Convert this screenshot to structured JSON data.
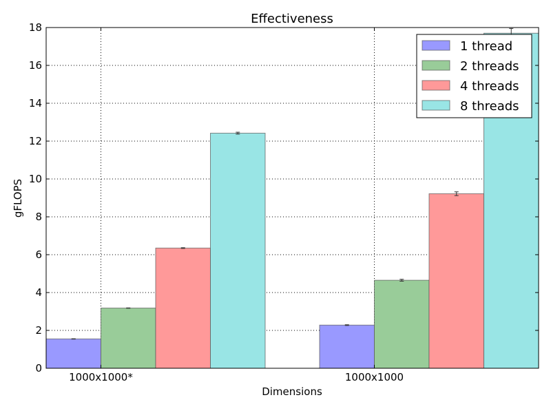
{
  "chart_data": {
    "type": "bar",
    "title": "Effectiveness",
    "xlabel": "Dimensions",
    "ylabel": "gFLOPS",
    "ylim": [
      0,
      18
    ],
    "yticks": [
      0,
      2,
      4,
      6,
      8,
      10,
      12,
      14,
      16,
      18
    ],
    "grid": true,
    "legend_position": "top-right",
    "categories": [
      "1000x1000*",
      "1000x1000"
    ],
    "series": [
      {
        "name": "1 thread",
        "color": "#9999ff",
        "values": [
          1.55,
          2.28
        ],
        "errors": [
          0.01,
          0.02
        ]
      },
      {
        "name": "2 threads",
        "color": "#99cc99",
        "values": [
          3.18,
          4.65
        ],
        "errors": [
          0.01,
          0.05
        ]
      },
      {
        "name": "4 threads",
        "color": "#ff9999",
        "values": [
          6.35,
          9.22
        ],
        "errors": [
          0.02,
          0.1
        ]
      },
      {
        "name": "8 threads",
        "color": "#99e5e5",
        "values": [
          12.42,
          17.7
        ],
        "errors": [
          0.05,
          0.25
        ]
      }
    ]
  }
}
